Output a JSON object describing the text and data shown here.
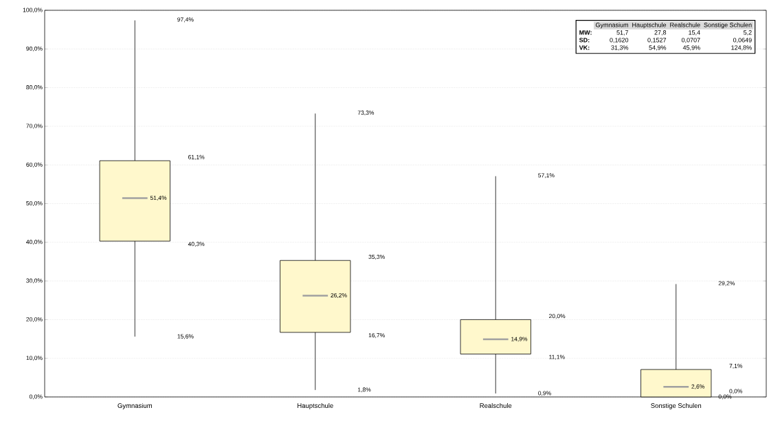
{
  "chart_data": {
    "type": "box",
    "categories": [
      "Gymnasium",
      "Hauptschule",
      "Realschule",
      "Sonstige Schulen"
    ],
    "boxes": [
      {
        "low": 15.6,
        "q1": 40.3,
        "median": 51.4,
        "q3": 61.1,
        "high": 97.4
      },
      {
        "low": 1.8,
        "q1": 16.7,
        "median": 26.2,
        "q3": 35.3,
        "high": 73.3
      },
      {
        "low": 0.9,
        "q1": 11.1,
        "median": 14.9,
        "q3": 20.0,
        "high": 57.1
      },
      {
        "low": 0.0,
        "q1": 0.0,
        "median": 2.6,
        "q3": 7.1,
        "high": 29.2
      }
    ],
    "value_labels": [
      [
        "15,6%",
        "40,3%",
        "51,4%",
        "61,1%",
        "97,4%"
      ],
      [
        "1,8%",
        "16,7%",
        "26,2%",
        "35,3%",
        "73,3%"
      ],
      [
        "0,9%",
        "11,1%",
        "14,9%",
        "20,0%",
        "57,1%"
      ],
      [
        "0,0%",
        "0,0%",
        "2,6%",
        "7,1%",
        "29,2%"
      ]
    ],
    "color": "#fff8cc",
    "ylim": [
      0,
      100
    ],
    "yticks": [
      {
        "value": 0,
        "label": "0,0%"
      },
      {
        "value": 10,
        "label": "10,0%"
      },
      {
        "value": 20,
        "label": "20,0%"
      },
      {
        "value": 30,
        "label": "30,0%"
      },
      {
        "value": 40,
        "label": "40,0%"
      },
      {
        "value": 50,
        "label": "50,0%"
      },
      {
        "value": 60,
        "label": "60,0%"
      },
      {
        "value": 70,
        "label": "70,0%"
      },
      {
        "value": 80,
        "label": "80,0%"
      },
      {
        "value": 90,
        "label": "90,0%"
      },
      {
        "value": 100,
        "label": "100,0%"
      }
    ],
    "grid": "y",
    "annotations": [
      "Gymnasium",
      "Hauptschule",
      "Realschule",
      "Sonstige Schulen",
      "MW:",
      "51,7",
      "27,8",
      "15,4",
      "5,2",
      "SD:",
      "0,1620",
      "0,1527",
      "0,0707",
      "0,0649",
      "VK:",
      "31,3%",
      "54,9%",
      "45,9%",
      "124,8%"
    ]
  }
}
